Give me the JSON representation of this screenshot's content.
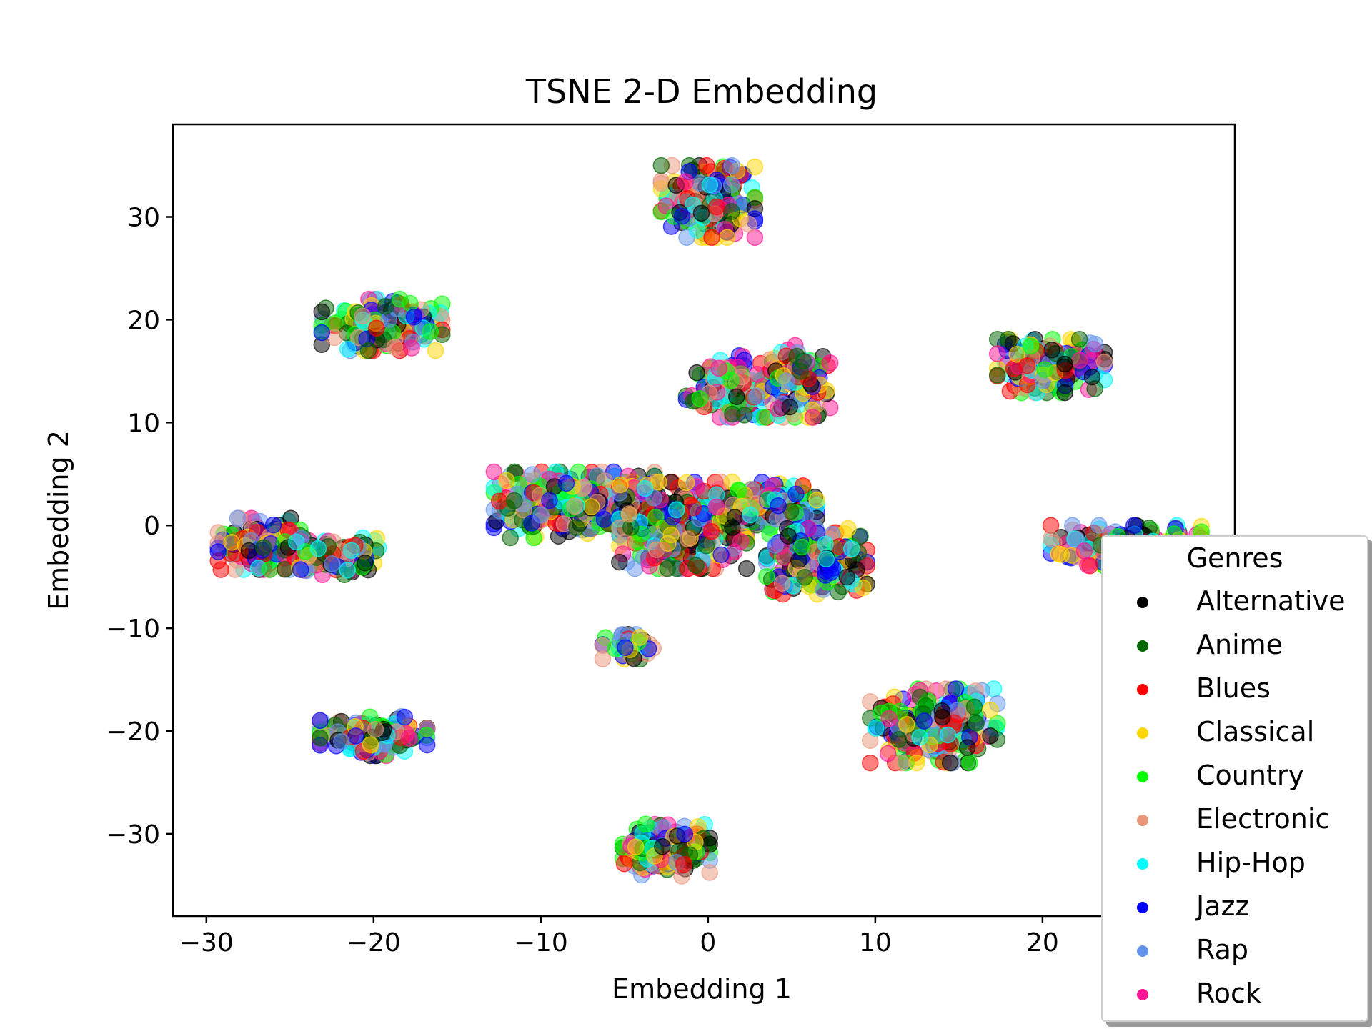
{
  "chart_data": {
    "type": "scatter",
    "title": "TSNE 2-D Embedding",
    "xlabel": "Embedding 1",
    "ylabel": "Embedding 2",
    "xlim": [
      -32,
      31.5
    ],
    "ylim": [
      -38,
      39
    ],
    "xticks": [
      -30,
      -20,
      -10,
      0,
      10,
      20
    ],
    "yticks": [
      -30,
      -20,
      -10,
      0,
      10,
      20,
      30
    ],
    "xtick_labels": [
      "−30",
      "−20",
      "−10",
      "0",
      "10",
      "20"
    ],
    "ytick_labels": [
      "−30",
      "−20",
      "−10",
      "0",
      "10",
      "20",
      "30"
    ],
    "grid": false,
    "marker_alpha": 0.5,
    "legend": {
      "title": "Genres",
      "placement": "lower-right"
    },
    "series": [
      {
        "name": "Alternative",
        "color": "#000000"
      },
      {
        "name": "Anime",
        "color": "#006400"
      },
      {
        "name": "Blues",
        "color": "#ff0000"
      },
      {
        "name": "Classical",
        "color": "#ffd700"
      },
      {
        "name": "Country",
        "color": "#00ff00"
      },
      {
        "name": "Electronic",
        "color": "#e9967a"
      },
      {
        "name": "Hip-Hop",
        "color": "#00ffff"
      },
      {
        "name": "Jazz",
        "color": "#0000ff"
      },
      {
        "name": "Rap",
        "color": "#6495ed"
      },
      {
        "name": "Rock",
        "color": "#ff1493"
      }
    ],
    "clusters": [
      {
        "cx": 0,
        "cy": 31.5,
        "rx": 2.8,
        "ry": 3.5,
        "n": 200
      },
      {
        "cx": -19.5,
        "cy": 19.5,
        "rx": 3.6,
        "ry": 2.5,
        "n": 200
      },
      {
        "cx": 1.5,
        "cy": 13.5,
        "rx": 2.8,
        "ry": 3.0,
        "n": 170
      },
      {
        "cx": 5.5,
        "cy": 14,
        "rx": 1.8,
        "ry": 3.5,
        "n": 110
      },
      {
        "cx": 20.5,
        "cy": 15.5,
        "rx": 3.2,
        "ry": 2.6,
        "n": 190
      },
      {
        "cx": -26.5,
        "cy": -1.8,
        "rx": 2.8,
        "ry": 2.5,
        "n": 160
      },
      {
        "cx": -22.5,
        "cy": -3,
        "rx": 2.8,
        "ry": 1.8,
        "n": 110
      },
      {
        "cx": -8,
        "cy": 2,
        "rx": 4.8,
        "ry": 3.2,
        "n": 380
      },
      {
        "cx": -1.5,
        "cy": 0,
        "rx": 3.8,
        "ry": 4.2,
        "n": 370
      },
      {
        "cx": 3.5,
        "cy": 2,
        "rx": 3.0,
        "ry": 2.2,
        "n": 180
      },
      {
        "cx": 6.5,
        "cy": -3.5,
        "rx": 3.0,
        "ry": 3.2,
        "n": 230
      },
      {
        "cx": 25,
        "cy": -2,
        "rx": 4.5,
        "ry": 2.0,
        "n": 210
      },
      {
        "cx": -4.5,
        "cy": -11.8,
        "rx": 1.8,
        "ry": 1.2,
        "n": 45
      },
      {
        "cx": -20,
        "cy": -20.5,
        "rx": 3.2,
        "ry": 1.9,
        "n": 150
      },
      {
        "cx": 13.5,
        "cy": -19.5,
        "rx": 3.8,
        "ry": 3.6,
        "n": 230
      },
      {
        "cx": -2.5,
        "cy": -31.5,
        "rx": 2.6,
        "ry": 2.6,
        "n": 170
      }
    ]
  }
}
